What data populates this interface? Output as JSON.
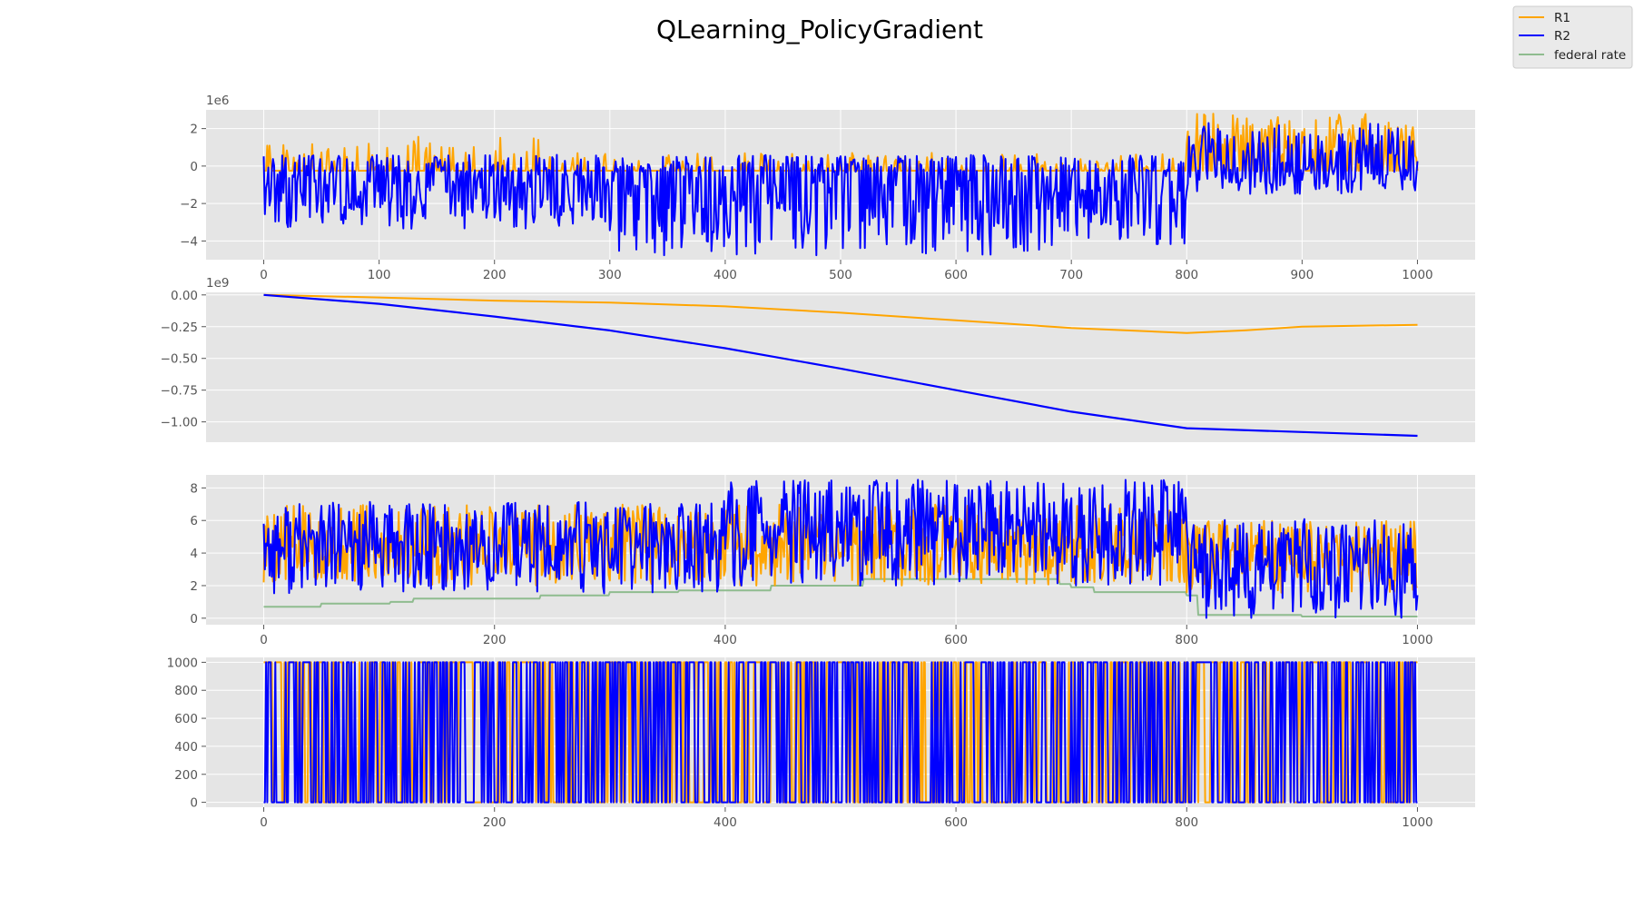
{
  "figure": {
    "title": "QLearning_PolicyGradient",
    "legend": [
      {
        "label": "R1",
        "color": "#ffa500"
      },
      {
        "label": "R2",
        "color": "#0000ff"
      },
      {
        "label": "federal rate",
        "color": "#8fbc8f"
      }
    ]
  },
  "colors": {
    "R1": "#ffa500",
    "R2": "#0000ff",
    "federal_rate": "#8fbc8f",
    "axes_bg": "#e5e5e5",
    "grid": "#ffffff"
  },
  "chart_data": [
    {
      "type": "line",
      "panel": 1,
      "offset_label": "1e6",
      "xlim": [
        -50,
        1050
      ],
      "ylim": [
        -5.0,
        3.0
      ],
      "xticks": [
        0,
        100,
        200,
        300,
        400,
        500,
        600,
        700,
        800,
        900,
        1000
      ],
      "xtick_labels": [
        "0",
        "100",
        "200",
        "300",
        "400",
        "500",
        "600",
        "700",
        "800",
        "900",
        "1000"
      ],
      "yticks": [
        -4,
        -2,
        0,
        2
      ],
      "ytick_labels": [
        "−4",
        "−2",
        "0",
        "2"
      ],
      "x_range": [
        0,
        1000
      ],
      "series": [
        {
          "name": "R1",
          "color": "#ffa500",
          "description": "noisy, mostly between -0.2 and 1.5 (x1e6); rises to 1–2.8 after x=800",
          "anchors": [
            [
              0,
              -0.2
            ],
            [
              100,
              0.2
            ],
            [
              200,
              0.0
            ],
            [
              300,
              -0.1
            ],
            [
              400,
              -0.2
            ],
            [
              500,
              -0.2
            ],
            [
              600,
              -0.2
            ],
            [
              700,
              0.0
            ],
            [
              800,
              0.5
            ],
            [
              900,
              1.0
            ],
            [
              1000,
              0.5
            ]
          ]
        },
        {
          "name": "R2",
          "color": "#0000ff",
          "description": "noisy, mostly between -4.5 and 0.6 (x1e6); 0 to 2.5 after x=800",
          "anchors": [
            [
              0,
              -1.5
            ],
            [
              100,
              -1.5
            ],
            [
              200,
              -1.8
            ],
            [
              300,
              -2.0
            ],
            [
              400,
              -2.2
            ],
            [
              500,
              -2.6
            ],
            [
              600,
              -2.5
            ],
            [
              700,
              -1.8
            ],
            [
              800,
              0.5
            ],
            [
              900,
              0.2
            ],
            [
              1000,
              1.5
            ]
          ]
        }
      ]
    },
    {
      "type": "line",
      "panel": 2,
      "offset_label": "1e9",
      "xlim": [
        -50,
        1050
      ],
      "ylim": [
        -1.16,
        0.02
      ],
      "xticks": [],
      "yticks": [
        0.0,
        -0.25,
        -0.5,
        -0.75,
        -1.0
      ],
      "ytick_labels": [
        "0.00",
        "−0.25",
        "−0.50",
        "−0.75",
        "−1.00"
      ],
      "series": [
        {
          "name": "R1",
          "color": "#ffa500",
          "points": [
            [
              0,
              0.0
            ],
            [
              100,
              -0.02
            ],
            [
              200,
              -0.045
            ],
            [
              300,
              -0.06
            ],
            [
              400,
              -0.09
            ],
            [
              500,
              -0.14
            ],
            [
              600,
              -0.2
            ],
            [
              700,
              -0.26
            ],
            [
              800,
              -0.3
            ],
            [
              850,
              -0.28
            ],
            [
              900,
              -0.25
            ],
            [
              1000,
              -0.235
            ]
          ]
        },
        {
          "name": "R2",
          "color": "#0000ff",
          "points": [
            [
              0,
              0.0
            ],
            [
              100,
              -0.07
            ],
            [
              200,
              -0.17
            ],
            [
              300,
              -0.28
            ],
            [
              400,
              -0.42
            ],
            [
              500,
              -0.58
            ],
            [
              600,
              -0.75
            ],
            [
              700,
              -0.92
            ],
            [
              800,
              -1.05
            ],
            [
              900,
              -1.08
            ],
            [
              1000,
              -1.11
            ]
          ]
        }
      ]
    },
    {
      "type": "line",
      "panel": 3,
      "xlim": [
        -50,
        1050
      ],
      "ylim": [
        -0.4,
        8.8
      ],
      "xticks": [
        0,
        200,
        400,
        600,
        800,
        1000
      ],
      "xtick_labels": [
        "0",
        "200",
        "400",
        "600",
        "800",
        "1000"
      ],
      "yticks": [
        0,
        2,
        4,
        6,
        8
      ],
      "ytick_labels": [
        "0",
        "2",
        "4",
        "6",
        "8"
      ],
      "series": [
        {
          "name": "R1",
          "color": "#ffa500",
          "description": "noisy, centered near 4, range about 1.5–7",
          "anchors": [
            [
              0,
              2.2
            ],
            [
              200,
              4.0
            ],
            [
              400,
              3.8
            ],
            [
              600,
              4.2
            ],
            [
              800,
              3.0
            ],
            [
              1000,
              3.0
            ]
          ]
        },
        {
          "name": "R2",
          "color": "#0000ff",
          "description": "noisy, range about 1–8.5 up to x=800, 0–6 afterwards",
          "anchors": [
            [
              0,
              5.8
            ],
            [
              200,
              4.5
            ],
            [
              400,
              5.0
            ],
            [
              600,
              5.5
            ],
            [
              800,
              2.0
            ],
            [
              1000,
              3.0
            ]
          ]
        },
        {
          "name": "federal rate",
          "color": "#8fbc8f",
          "steps": [
            [
              0,
              0.7
            ],
            [
              50,
              0.9
            ],
            [
              110,
              1.0
            ],
            [
              130,
              1.2
            ],
            [
              240,
              1.4
            ],
            [
              300,
              1.6
            ],
            [
              360,
              1.7
            ],
            [
              440,
              2.0
            ],
            [
              520,
              2.4
            ],
            [
              690,
              2.1
            ],
            [
              700,
              1.9
            ],
            [
              720,
              1.6
            ],
            [
              800,
              1.4
            ],
            [
              810,
              0.2
            ],
            [
              900,
              0.1
            ],
            [
              1000,
              0.1
            ]
          ]
        }
      ]
    },
    {
      "type": "line",
      "panel": 4,
      "xlim": [
        -50,
        1050
      ],
      "ylim": [
        -35,
        1035
      ],
      "xticks": [
        0,
        200,
        400,
        600,
        800,
        1000
      ],
      "xtick_labels": [
        "0",
        "200",
        "400",
        "600",
        "800",
        "1000"
      ],
      "yticks": [
        0,
        200,
        400,
        600,
        800,
        1000
      ],
      "ytick_labels": [
        "0",
        "200",
        "400",
        "600",
        "800",
        "1000"
      ],
      "series": [
        {
          "name": "R1",
          "color": "#ffa500",
          "description": "switches between 0 and 1000"
        },
        {
          "name": "R2",
          "color": "#0000ff",
          "description": "switches between 0 and 1000, dense"
        }
      ]
    }
  ]
}
